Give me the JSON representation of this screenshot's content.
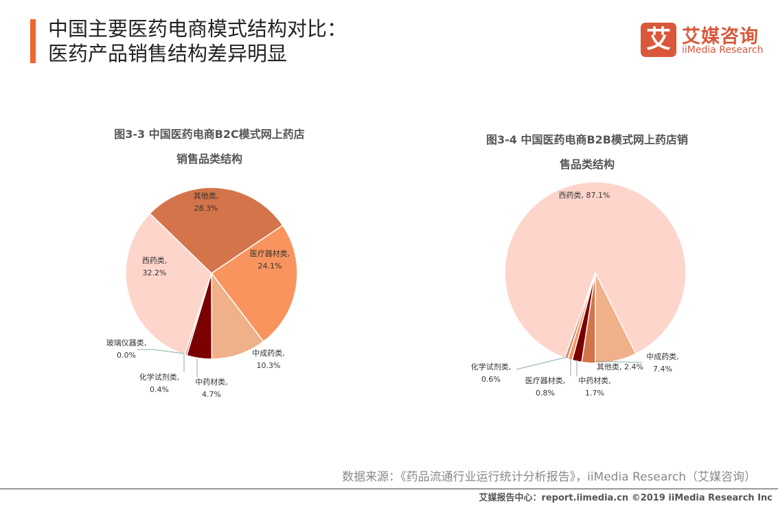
{
  "header": {
    "title_line1": "中国主要医药电商模式结构对比：",
    "title_line2": "医药产品销售结构差异明显",
    "accent_color": "#F0652C"
  },
  "logo": {
    "mark": "艾",
    "name_cn": "艾媒咨询",
    "name_en": "iiMedia Research",
    "color": "#D9583A"
  },
  "chart_data": [
    {
      "type": "pie",
      "title_line1": "图3-3 中国医药电商B2C模式网上药店",
      "title_line2": "销售品类结构",
      "unit": "%",
      "slices": [
        {
          "name": "医疗器材类",
          "value": 24.1,
          "color": "#F9945E"
        },
        {
          "name": "中成药类",
          "value": 10.3,
          "color": "#EFB08A"
        },
        {
          "name": "中药材类",
          "value": 4.7,
          "color": "#7B0000"
        },
        {
          "name": "化学试剂类",
          "value": 0.4,
          "color": "#C98E78"
        },
        {
          "name": "玻璃仪器类",
          "value": 0.0,
          "color": "#B0B0B0"
        },
        {
          "name": "西药类",
          "value": 32.2,
          "color": "#FDD5CB"
        },
        {
          "name": "其他类",
          "value": 28.3,
          "color": "#D4744A"
        }
      ]
    },
    {
      "type": "pie",
      "title_line1": "图3-4 中国医药电商B2B模式网上药店销",
      "title_line2": "售品类结构",
      "unit": "%",
      "slices": [
        {
          "name": "中成药类",
          "value": 7.4,
          "color": "#EFB08A"
        },
        {
          "name": "其他类",
          "value": 2.4,
          "color": "#D4744A"
        },
        {
          "name": "中药材类",
          "value": 1.7,
          "color": "#7B0000"
        },
        {
          "name": "医疗器材类",
          "value": 0.8,
          "color": "#F9945E"
        },
        {
          "name": "化学试剂类",
          "value": 0.6,
          "color": "#C98E78"
        },
        {
          "name": "西药类",
          "value": 87.1,
          "color": "#FDD5CB"
        }
      ]
    }
  ],
  "labels": {
    "b2c": [
      {
        "name": "其他类",
        "value": "28.3%"
      },
      {
        "name": "医疗器材类",
        "value": "24.1%"
      },
      {
        "name": "西药类",
        "value": "32.2%"
      },
      {
        "name": "中成药类",
        "value": "10.3%"
      },
      {
        "name": "中药材类",
        "value": "4.7%"
      },
      {
        "name": "化学试剂类",
        "value": "0.4%"
      },
      {
        "name": "玻璃仪器类",
        "value": "0.0%"
      }
    ],
    "b2b": [
      {
        "name": "西药类",
        "value": "87.1%"
      },
      {
        "name": "中成药类",
        "value": "7.4%"
      },
      {
        "name": "其他类",
        "value": "2.4%"
      },
      {
        "name": "中药材类",
        "value": "1.7%"
      },
      {
        "name": "医疗器材类",
        "value": "0.8%"
      },
      {
        "name": "化学试剂类",
        "value": "0.6%"
      }
    ]
  },
  "source": "数据来源：《药品流通行业运行统计分析报告》，iiMedia Research（艾媒咨询）",
  "footer": "艾媒报告中心：report.iimedia.cn  ©2019  iiMedia Research  Inc"
}
